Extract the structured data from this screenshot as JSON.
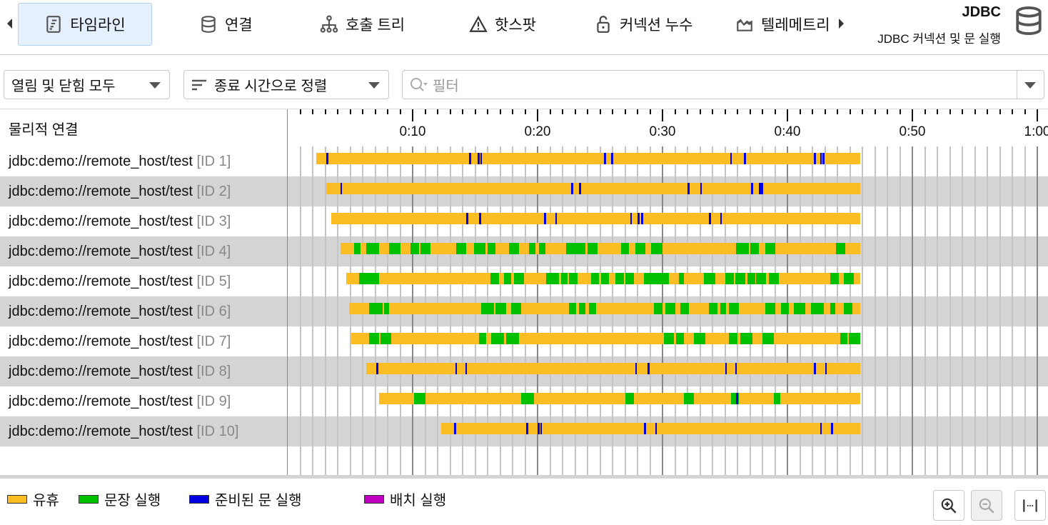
{
  "tabs": [
    {
      "label": "타임라인",
      "icon": "timeline-icon",
      "active": true
    },
    {
      "label": "연결",
      "icon": "database-icon"
    },
    {
      "label": "호출 트리",
      "icon": "call-tree-icon"
    },
    {
      "label": "핫스팟",
      "icon": "warning-icon"
    },
    {
      "label": "커넥션 누수",
      "icon": "lock-icon"
    },
    {
      "label": "텔레메트리",
      "icon": "telemetry-icon"
    }
  ],
  "header": {
    "title": "JDBC",
    "subtitle": "JDBC 커넥션 및 문 실행"
  },
  "filters": {
    "mode": "열림 및 닫힘 모두",
    "sort": "종료 시간으로 정렬",
    "filter_placeholder": "필터"
  },
  "table": {
    "column": "물리적 연결"
  },
  "axis": {
    "labels": [
      "0:10",
      "0:20",
      "0:30",
      "0:40",
      "0:50",
      "1:00"
    ],
    "range_seconds": [
      0,
      61
    ]
  },
  "colors": {
    "idle": "#fbbd24",
    "statement": "#00c000",
    "prepared": "#0000e0",
    "batch": "#c000c0"
  },
  "connections": [
    {
      "url": "jdbc:demo://remote_host/test",
      "id": "[ID 1]",
      "start": 2.3,
      "end": 45.8,
      "green": [],
      "blue": [
        3.1,
        14.5,
        15.2,
        15.4,
        25.3,
        25.9,
        35.4,
        36.5,
        42.1,
        42.6,
        42.8
      ]
    },
    {
      "url": "jdbc:demo://remote_host/test",
      "id": "[ID 2]",
      "start": 3.1,
      "end": 45.8,
      "green": [],
      "blue": [
        4.2,
        22.7,
        23.3,
        32.0,
        33.0,
        37.1,
        37.7,
        37.9
      ]
    },
    {
      "url": "jdbc:demo://remote_host/test",
      "id": "[ID 3]",
      "start": 3.5,
      "end": 45.8,
      "green": [],
      "blue": [
        14.3,
        15.3,
        20.5,
        21.4,
        27.4,
        28.0,
        28.3,
        33.7,
        34.6
      ]
    },
    {
      "url": "jdbc:demo://remote_host/test",
      "id": "[ID 4]",
      "start": 4.2,
      "end": 45.8,
      "blue": [],
      "green": [
        [
          5.3,
          5.8
        ],
        [
          6.3,
          7.3
        ],
        [
          8.1,
          9.0
        ],
        [
          9.8,
          10.5
        ],
        [
          10.6,
          11.4
        ],
        [
          13.5,
          14.3
        ],
        [
          14.9,
          15.8
        ],
        [
          16.0,
          16.6
        ],
        [
          17.7,
          18.5
        ],
        [
          19.3,
          19.8
        ],
        [
          20.1,
          20.6
        ],
        [
          22.3,
          23.8
        ],
        [
          24.0,
          24.8
        ],
        [
          26.7,
          27.3
        ],
        [
          27.8,
          28.6
        ],
        [
          29.1,
          30.0
        ],
        [
          35.9,
          36.9
        ],
        [
          37.0,
          37.7
        ],
        [
          38.2,
          39.0
        ],
        [
          43.9,
          44.6
        ]
      ]
    },
    {
      "url": "jdbc:demo://remote_host/test",
      "id": "[ID 5]",
      "start": 4.7,
      "end": 45.8,
      "blue": [],
      "green": [
        [
          5.7,
          7.3
        ],
        [
          16.2,
          16.9
        ],
        [
          17.3,
          17.9
        ],
        [
          18.1,
          18.9
        ],
        [
          20.7,
          21.7
        ],
        [
          21.9,
          22.4
        ],
        [
          22.5,
          23.2
        ],
        [
          24.3,
          24.9
        ],
        [
          25.1,
          25.7
        ],
        [
          26.2,
          26.9
        ],
        [
          27.0,
          27.7
        ],
        [
          28.5,
          30.5
        ],
        [
          31.3,
          31.7
        ],
        [
          33.3,
          34.2
        ],
        [
          35.0,
          35.7
        ],
        [
          35.8,
          36.6
        ],
        [
          36.8,
          37.4
        ],
        [
          37.5,
          38.3
        ],
        [
          38.5,
          39.3
        ],
        [
          43.4,
          44.1
        ],
        [
          44.5,
          45.3
        ]
      ]
    },
    {
      "url": "jdbc:demo://remote_host/test",
      "id": "[ID 6]",
      "start": 4.9,
      "end": 45.8,
      "blue": [],
      "green": [
        [
          6.5,
          7.6
        ],
        [
          7.7,
          8.1
        ],
        [
          15.5,
          16.5
        ],
        [
          16.6,
          17.5
        ],
        [
          17.9,
          18.7
        ],
        [
          22.5,
          23.1
        ],
        [
          23.3,
          23.8
        ],
        [
          24.1,
          24.7
        ],
        [
          29.3,
          30.0
        ],
        [
          30.2,
          31.0
        ],
        [
          31.4,
          32.1
        ],
        [
          33.7,
          34.4
        ],
        [
          34.6,
          35.1
        ],
        [
          35.3,
          36.1
        ],
        [
          38.2,
          39.0
        ],
        [
          39.5,
          40.1
        ],
        [
          40.5,
          41.4
        ],
        [
          41.9,
          42.9
        ],
        [
          43.4,
          43.8
        ],
        [
          44.5,
          45.2
        ]
      ]
    },
    {
      "url": "jdbc:demo://remote_host/test",
      "id": "[ID 7]",
      "start": 5.1,
      "end": 45.8,
      "blue": [],
      "green": [
        [
          6.5,
          7.3
        ],
        [
          7.4,
          8.3
        ],
        [
          15.3,
          15.9
        ],
        [
          16.3,
          17.3
        ],
        [
          17.5,
          18.5
        ],
        [
          30.1,
          30.9
        ],
        [
          31.1,
          31.7
        ],
        [
          32.5,
          33.4
        ],
        [
          35.3,
          36.0
        ],
        [
          36.2,
          37.2
        ],
        [
          38.0,
          38.9
        ],
        [
          44.2,
          44.8
        ],
        [
          44.9,
          45.8
        ]
      ]
    },
    {
      "url": "jdbc:demo://remote_host/test",
      "id": "[ID 8]",
      "start": 6.3,
      "end": 45.8,
      "green": [],
      "blue": [
        7.1,
        13.4,
        14.2,
        27.8,
        28.8,
        35.0,
        35.8,
        42.1,
        43.0
      ]
    },
    {
      "url": "jdbc:demo://remote_host/test",
      "id": "[ID 9]",
      "start": 7.3,
      "end": 45.8,
      "blue": [
        35.9
      ],
      "green": [
        [
          10.1,
          11.0
        ],
        [
          18.7,
          19.7
        ],
        [
          27.0,
          27.7
        ],
        [
          31.7,
          32.5
        ],
        [
          35.5,
          36.1
        ],
        [
          38.9,
          39.4
        ]
      ]
    },
    {
      "url": "jdbc:demo://remote_host/test",
      "id": "[ID 10]",
      "start": 12.3,
      "end": 45.8,
      "green": [],
      "blue": [
        13.3,
        19.1,
        20.0,
        20.2,
        28.5,
        29.4,
        42.6,
        43.5
      ]
    }
  ],
  "legend": [
    {
      "label": "유휴",
      "color": "#fbbd24"
    },
    {
      "label": "문장 실행",
      "color": "#00c000"
    },
    {
      "label": "준비된 문 실행",
      "color": "#0000e0"
    },
    {
      "label": "배치 실행",
      "color": "#c000c0"
    }
  ],
  "controls": {
    "zoom_in": "zoom-in",
    "zoom_out": "zoom-out",
    "fit": "fit"
  }
}
